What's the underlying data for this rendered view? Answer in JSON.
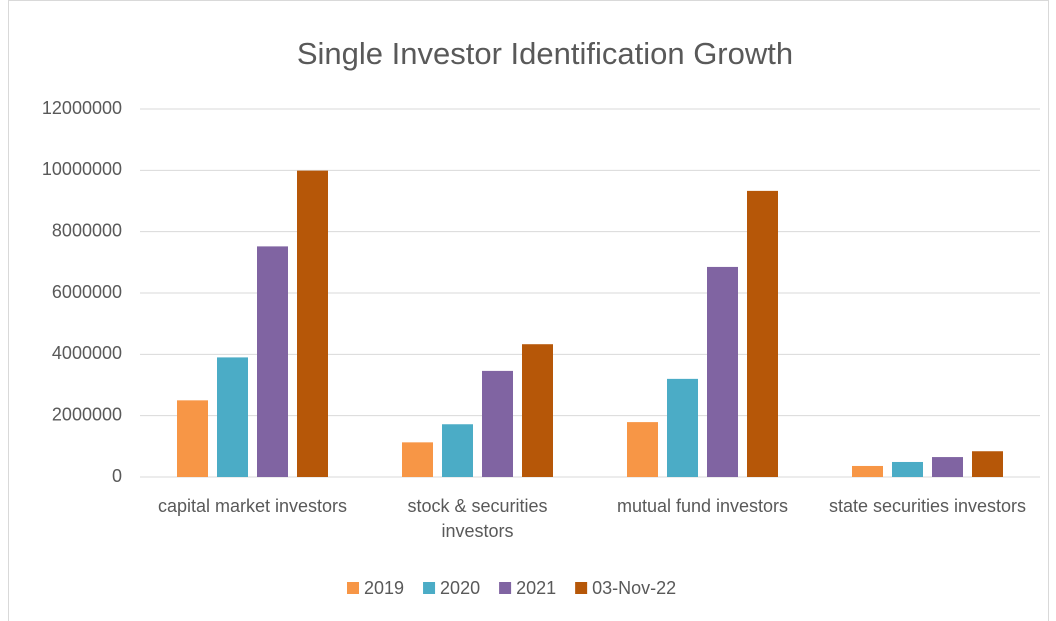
{
  "chart_data": {
    "type": "bar",
    "title": "Single Investor Identification Growth",
    "categories": [
      "capital market investors",
      "stock & securities investors",
      "mutual fund investors",
      "state securities investors"
    ],
    "series": [
      {
        "name": "2019",
        "color": "#f79646",
        "values": [
          2500000,
          1130000,
          1790000,
          360000
        ]
      },
      {
        "name": "2020",
        "color": "#4bacc6",
        "values": [
          3900000,
          1720000,
          3200000,
          490000
        ]
      },
      {
        "name": "2021",
        "color": "#8064a2",
        "values": [
          7520000,
          3460000,
          6850000,
          650000
        ]
      },
      {
        "name": "03-Nov-22",
        "color": "#b65708",
        "values": [
          9990000,
          4330000,
          9330000,
          840000
        ]
      }
    ],
    "ylim": [
      0,
      12000000
    ],
    "yticks": [
      0,
      2000000,
      4000000,
      6000000,
      8000000,
      10000000,
      12000000
    ],
    "grid": true,
    "legend": "bottom"
  }
}
